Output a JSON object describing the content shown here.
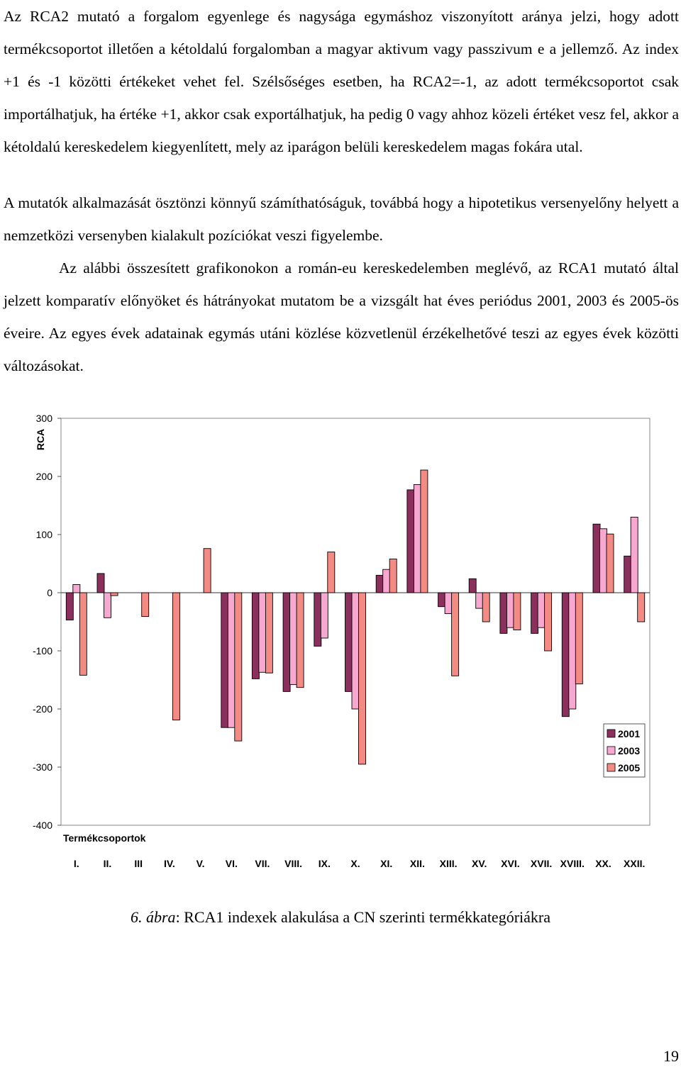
{
  "paragraphs": [
    "Az RCA2 mutató a forgalom egyenlege és nagysága egymáshoz viszonyított aránya jelzi, hogy adott termékcsoportot illetően a kétoldalú forgalomban a magyar aktivum vagy passzivum e a jellemző. Az index +1 és -1 közötti értékeket vehet fel. Szélsőséges esetben, ha RCA2=-1, az adott termékcsoportot csak importálhatjuk, ha értéke +1, akkor csak exportálhatjuk, ha pedig 0 vagy ahhoz közeli értéket vesz fel, akkor a kétoldalú kereskedelem kiegyenlített, mely az iparágon belüli kereskedelem magas fokára utal.",
    "A mutatók alkalmazását ösztönzi könnyű számíthatóságuk, továbbá hogy a hipotetikus versenyelőny helyett a nemzetközi versenyben kialakult pozíciókat veszi figyelembe.",
    "Az alábbi összesített grafikonokon a román-eu kereskedelemben meglévő, az RCA1 mutató által jelzett komparatív előnyöket és hátrányokat mutatom be a vizsgált hat éves periódus 2001, 2003 és 2005-ös éveire. Az egyes évek adatainak egymás utáni közlése közvetlenül érzékelhetővé teszi az egyes évek közötti változásokat."
  ],
  "figure": {
    "caption_label": "6. ábra",
    "caption_rest": ": RCA1 indexek alakulása a CN szerinti termékkategóriákra"
  },
  "page_number": "19",
  "colors": {
    "s2001": "#8b2f5d",
    "s2003": "#f7a8d0",
    "s2005": "#f48a84",
    "plot_border": "#9a9a9a"
  },
  "chart_data": {
    "type": "bar",
    "ylabel": "RCA",
    "xlabel": "Termékcsoportok",
    "ylim": [
      -400,
      300
    ],
    "yticks": [
      300,
      200,
      100,
      0,
      -100,
      -200,
      -300,
      -400
    ],
    "legend_position": "bottom-right",
    "categories": [
      "I.",
      "II.",
      "III",
      "IV.",
      "V.",
      "VI.",
      "VII.",
      "VIII.",
      "IX.",
      "X.",
      "XI.",
      "XII.",
      "XIII.",
      "XV.",
      "XVI.",
      "XVII.",
      "XVIII.",
      "XX.",
      "XXII."
    ],
    "series": [
      {
        "name": "2001",
        "values": [
          -47,
          33,
          0,
          0,
          0,
          -232,
          -148,
          -170,
          -92,
          -170,
          30,
          177,
          -24,
          24,
          -70,
          -70,
          -213,
          118,
          63
        ]
      },
      {
        "name": "2003",
        "values": [
          14,
          -43,
          0,
          0,
          0,
          -232,
          -137,
          -158,
          -78,
          -200,
          40,
          186,
          -36,
          -27,
          -60,
          -60,
          -200,
          110,
          130
        ]
      },
      {
        "name": "2005",
        "values": [
          -142,
          -5,
          -41,
          -219,
          76,
          -255,
          -138,
          -163,
          70,
          -295,
          58,
          211,
          -143,
          -50,
          -64,
          -100,
          -157,
          101,
          -50
        ]
      }
    ]
  }
}
